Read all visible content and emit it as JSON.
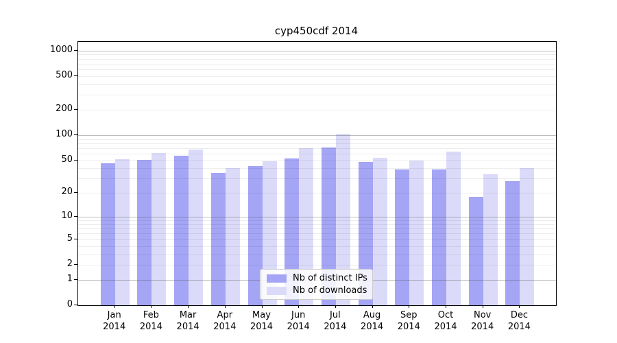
{
  "title": "cyp450cdf 2014",
  "chart_data": {
    "type": "bar",
    "title": "cyp450cdf 2014",
    "scale": "log1p",
    "categories": [
      "Jan",
      "Feb",
      "Mar",
      "Apr",
      "May",
      "Jun",
      "Jul",
      "Aug",
      "Sep",
      "Oct",
      "Nov",
      "Dec"
    ],
    "year": "2014",
    "series": [
      {
        "name": "Nb of distinct IPs",
        "color": "#a5a5f5",
        "values": [
          46,
          51,
          57,
          35,
          43,
          53,
          71,
          48,
          39,
          39,
          18,
          28
        ]
      },
      {
        "name": "Nb of downloads",
        "color": "#dbdbf9",
        "values": [
          52,
          61,
          68,
          40,
          49,
          70,
          104,
          54,
          50,
          64,
          34,
          40
        ]
      }
    ],
    "yticks": [
      0,
      1,
      2,
      5,
      10,
      20,
      50,
      100,
      200,
      500,
      1000
    ],
    "ylim": [
      0,
      1286
    ],
    "xlabel": "",
    "ylabel": "",
    "grid": "on",
    "legend_position": "lower center"
  },
  "colors": {
    "bar_distinct_ips": "#a5a5f5",
    "bar_downloads": "#dbdbf9",
    "grid_major": "#9a9a9a",
    "grid_minor": "#e9e9e9",
    "frame": "#000000"
  }
}
